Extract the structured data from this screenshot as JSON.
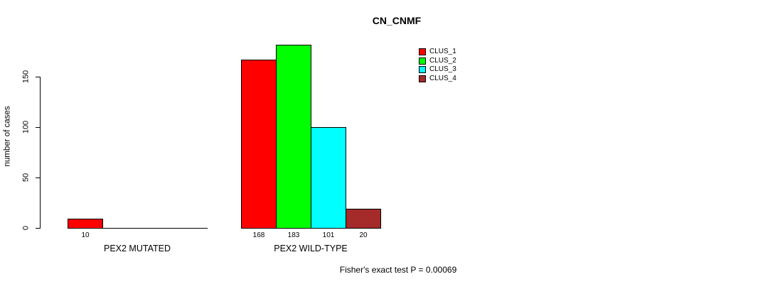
{
  "title": "CN_CNMF",
  "footer": "Fisher's exact test P = 0.00069",
  "y_axis": {
    "label": "number of cases",
    "ticks": [
      0,
      50,
      100,
      150
    ]
  },
  "chart_data": {
    "type": "bar",
    "title": "CN_CNMF",
    "xlabel": "",
    "ylabel": "number of cases",
    "categories": [
      "PEX2 MUTATED",
      "PEX2 WILD-TYPE"
    ],
    "series": [
      {
        "name": "CLUS_1",
        "color": "#ff0000",
        "values": [
          10,
          168
        ]
      },
      {
        "name": "CLUS_2",
        "color": "#00ff00",
        "values": [
          0,
          183
        ]
      },
      {
        "name": "CLUS_3",
        "color": "#00ffff",
        "values": [
          0,
          101
        ]
      },
      {
        "name": "CLUS_4",
        "color": "#a52a2a",
        "values": [
          0,
          20
        ]
      }
    ],
    "yticks": [
      0,
      50,
      100,
      150
    ],
    "ylim": [
      0,
      190
    ],
    "grid": false,
    "bar_borders": "#000000",
    "value_labels_shown": true,
    "zero_value_labels_hidden": true,
    "legend_position": "top-right",
    "legend_entries": [
      "CLUS_1",
      "CLUS_2",
      "CLUS_3",
      "CLUS_4"
    ],
    "annotation": "Fisher's exact test P = 0.00069"
  }
}
